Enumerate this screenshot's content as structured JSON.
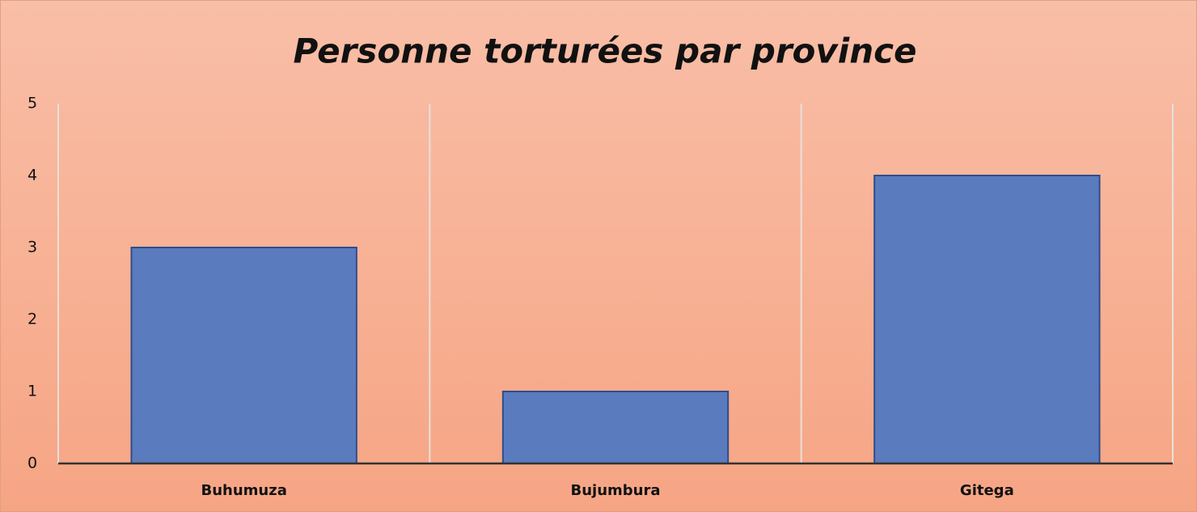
{
  "chart_data": {
    "type": "bar",
    "title": "Personne torturées par province",
    "categories": [
      "Buhumuza",
      "Bujumbura",
      "Gitega"
    ],
    "values": [
      3,
      1,
      4
    ],
    "color": "#5b7bbf",
    "ylim": [
      0,
      5
    ],
    "yticks": [
      0,
      1,
      2,
      3,
      4,
      5
    ],
    "grid": true
  }
}
